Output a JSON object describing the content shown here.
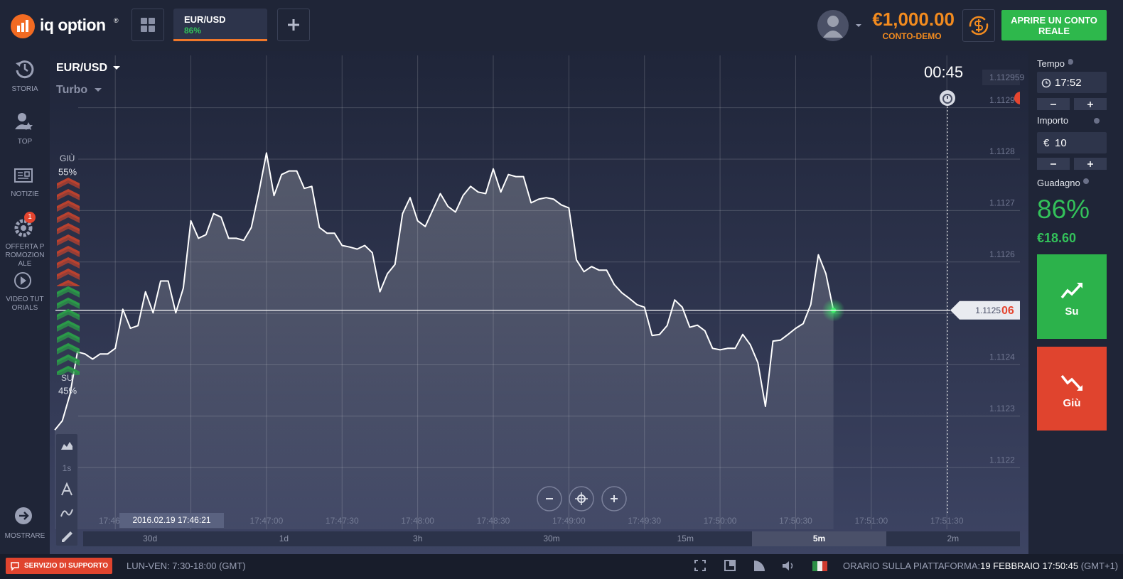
{
  "header": {
    "logo": "iq option",
    "logo_mark": "®",
    "asset_tab": {
      "name": "EUR/USD",
      "payout": "86%"
    },
    "balance": "€1,000.00",
    "account_type": "CONTO-DEMO",
    "real_account_button": "APRIRE UN CONTO REALE"
  },
  "sidebar": {
    "items": [
      {
        "label": "STORIA"
      },
      {
        "label": "TOP"
      },
      {
        "label": "NOTIZIE"
      },
      {
        "label": "OFFERTA PROMOZIONALE",
        "badge": "1"
      },
      {
        "label": "VIDEO TUTORIALS"
      }
    ],
    "show_more": "MOSTRARE"
  },
  "chart": {
    "type": "line",
    "asset": "EUR/USD",
    "mode": "Turbo",
    "countdown": "00:45",
    "cursor_time": "2016.02.19 17:46:21",
    "max_price": 1.112959,
    "current_price": {
      "value": 1.112506,
      "label": "1.1125",
      "label_tail": "06"
    },
    "color": "#ffffff",
    "x": [
      "17:45:36",
      "17:45:39",
      "17:45:42",
      "17:45:45",
      "17:45:48",
      "17:45:51",
      "17:45:54",
      "17:45:57",
      "17:46:00",
      "17:46:03",
      "17:46:06",
      "17:46:09",
      "17:46:12",
      "17:46:15",
      "17:46:18",
      "17:46:21",
      "17:46:24",
      "17:46:27",
      "17:46:30",
      "17:46:33",
      "17:46:36",
      "17:46:39",
      "17:46:42",
      "17:46:45",
      "17:46:48",
      "17:46:51",
      "17:46:54",
      "17:46:57",
      "17:47:00",
      "17:47:03",
      "17:47:06",
      "17:47:09",
      "17:47:12",
      "17:47:15",
      "17:47:18",
      "17:47:21",
      "17:47:24",
      "17:47:27",
      "17:47:30",
      "17:47:33",
      "17:47:36",
      "17:47:39",
      "17:47:42",
      "17:47:45",
      "17:47:48",
      "17:47:51",
      "17:47:54",
      "17:47:57",
      "17:48:00",
      "17:48:03",
      "17:48:06",
      "17:48:09",
      "17:48:12",
      "17:48:15",
      "17:48:18",
      "17:48:21",
      "17:48:24",
      "17:48:27",
      "17:48:30",
      "17:48:33",
      "17:48:36",
      "17:48:39",
      "17:48:42",
      "17:48:45",
      "17:48:48",
      "17:48:51",
      "17:48:54",
      "17:48:57",
      "17:49:00",
      "17:49:03",
      "17:49:06",
      "17:49:09",
      "17:49:12",
      "17:49:15",
      "17:49:18",
      "17:49:21",
      "17:49:24",
      "17:49:27",
      "17:49:30",
      "17:49:33",
      "17:49:36",
      "17:49:39",
      "17:49:42",
      "17:49:45",
      "17:49:48",
      "17:49:51",
      "17:49:54",
      "17:49:57",
      "17:50:00",
      "17:50:03",
      "17:50:06",
      "17:50:09",
      "17:50:12",
      "17:50:15",
      "17:50:18",
      "17:50:21",
      "17:50:24",
      "17:50:27",
      "17:50:30",
      "17:50:33",
      "17:50:36",
      "17:50:39",
      "17:50:42",
      "17:50:45"
    ],
    "values": [
      1.112273,
      1.112291,
      1.112342,
      1.112425,
      1.112421,
      1.112411,
      1.112421,
      1.112421,
      1.112432,
      1.112508,
      1.112471,
      1.112476,
      1.112542,
      1.112501,
      1.112563,
      1.112563,
      1.112501,
      1.112549,
      1.11268,
      1.112646,
      1.112653,
      1.112694,
      1.112687,
      1.112646,
      1.112646,
      1.112642,
      1.112667,
      1.112736,
      1.112812,
      1.112729,
      1.11277,
      1.112777,
      1.112777,
      1.112743,
      1.112747,
      1.112667,
      1.112656,
      1.112656,
      1.112632,
      1.112629,
      1.112625,
      1.112632,
      1.112618,
      1.112542,
      1.112577,
      1.112595,
      1.112694,
      1.112725,
      1.11268,
      1.112669,
      1.112701,
      1.112733,
      1.112708,
      1.112697,
      1.112729,
      1.112747,
      1.112736,
      1.112733,
      1.112781,
      1.112736,
      1.11277,
      1.112766,
      1.112766,
      1.112715,
      1.112722,
      1.112725,
      1.112722,
      1.112711,
      1.112705,
      1.112604,
      1.112581,
      1.112591,
      1.112584,
      1.112584,
      1.112556,
      1.11254,
      1.112529,
      1.112517,
      1.112512,
      1.112457,
      1.112459,
      1.112476,
      1.112526,
      1.112512,
      1.112473,
      1.112477,
      1.112466,
      1.112432,
      1.112429,
      1.112432,
      1.112432,
      1.112459,
      1.112439,
      1.112404,
      1.112319,
      1.112446,
      1.112448,
      1.112459,
      1.112471,
      1.11248,
      1.112517,
      1.112614,
      1.112577,
      1.112506
    ],
    "xlim": [
      "17:45:34",
      "17:51:59"
    ],
    "ylim": [
      1.11208,
      1.11301
    ],
    "xticks": [
      "17:46:00",
      "17:46:30",
      "17:47:00",
      "17:47:30",
      "17:48:00",
      "17:48:30",
      "17:49:00",
      "17:49:30",
      "17:50:00",
      "17:50:30",
      "17:51:00",
      "17:51:30"
    ],
    "yticks": [
      1.1122,
      1.1123,
      1.1124,
      1.1125,
      1.1126,
      1.1127,
      1.1128,
      1.1129
    ],
    "grid": true,
    "sentiment": [
      {
        "label": "GIÙ",
        "value": 55,
        "value_label": "55%",
        "color": "#b9412e"
      },
      {
        "label": "SU",
        "value": 45,
        "value_label": "45%",
        "color": "#2a9a48"
      }
    ],
    "tools": {
      "interval": "1s"
    },
    "timeframes": [
      "30d",
      "1d",
      "3h",
      "30m",
      "15m",
      "5m",
      "2m"
    ],
    "active_timeframe": "5m"
  },
  "trade_panel": {
    "time_label": "Tempo",
    "time_value": "17:52",
    "amount_label": "Importo",
    "currency": "€",
    "amount_value": "10",
    "profit_label": "Guadagno",
    "profit_percent": "86%",
    "profit_amount": "€18.60",
    "call_button": "Su",
    "put_button": "Giù"
  },
  "footer": {
    "support_button": "SERVIZIO DI SUPPORTO",
    "hours": "LUN-VEN: 7:30-18:00 (GMT)",
    "platform_time_label": "ORARIO SULLA PIATTAFORMA:",
    "platform_time": "19 FEBBRAIO 17:50:45",
    "timezone": "(GMT+1)"
  }
}
